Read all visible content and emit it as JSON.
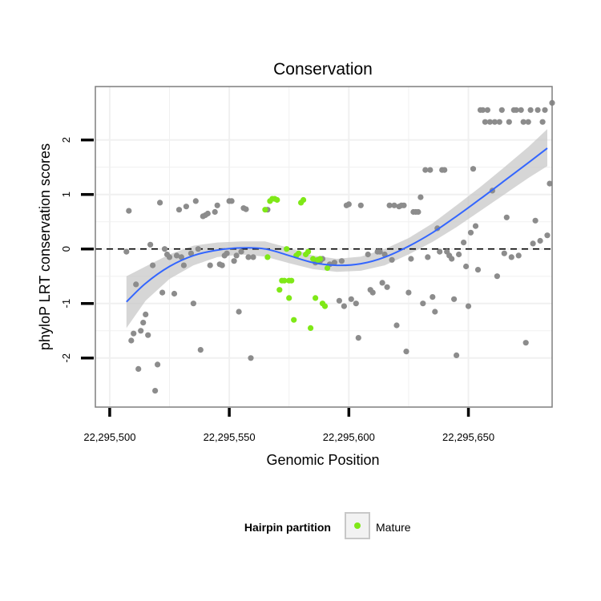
{
  "chart_data": {
    "type": "scatter",
    "title": "Conservation",
    "xlabel": "Genomic Position",
    "ylabel": "phyloP LRT conservation scores",
    "xlim": [
      22295494,
      22295685
    ],
    "ylim": [
      -2.9,
      2.98
    ],
    "x_ticks": [
      22295500,
      22295550,
      22295600,
      22295650
    ],
    "x_tick_labels": [
      "22,295,500",
      "22,295,550",
      "22,295,600",
      "22,295,650"
    ],
    "y_ticks": [
      -2,
      -1,
      0,
      1,
      2
    ],
    "y_tick_labels": [
      "-2",
      "-1",
      "0",
      "1",
      "2"
    ],
    "grid": true,
    "reference_line": {
      "y": 0,
      "style": "dashed"
    },
    "legend": {
      "title": "Hairpin partition",
      "position": "bottom",
      "entries": [
        "Mature"
      ]
    },
    "colors": {
      "other": "#8c8c8c",
      "mature": "#7fe817",
      "fit_line": "#3366ff",
      "ribbon": "#c8c8c8",
      "panel_border": "#7f7f7f",
      "grid": "#f0f0f0"
    },
    "series": [
      {
        "color": "#8c8c8c",
        "points": [
          [
            22295507,
            -0.05
          ],
          [
            22295508,
            0.7
          ],
          [
            22295509,
            -1.68
          ],
          [
            22295510,
            -1.55
          ],
          [
            22295511,
            -0.65
          ],
          [
            22295512,
            -2.2
          ],
          [
            22295513,
            -1.5
          ],
          [
            22295514,
            -1.35
          ],
          [
            22295515,
            -1.2
          ],
          [
            22295516,
            -1.58
          ],
          [
            22295517,
            0.08
          ],
          [
            22295518,
            -0.3
          ],
          [
            22295519,
            -2.6
          ],
          [
            22295520,
            -2.12
          ],
          [
            22295521,
            0.85
          ],
          [
            22295522,
            -0.8
          ],
          [
            22295523,
            0.0
          ],
          [
            22295524,
            -0.1
          ],
          [
            22295525,
            -0.15
          ],
          [
            22295527,
            -0.82
          ],
          [
            22295528,
            -0.12
          ],
          [
            22295529,
            0.72
          ],
          [
            22295530,
            -0.15
          ],
          [
            22295531,
            -0.3
          ],
          [
            22295532,
            0.78
          ],
          [
            22295534,
            -0.08
          ],
          [
            22295535,
            -1.0
          ],
          [
            22295536,
            0.88
          ],
          [
            22295537,
            0.0
          ],
          [
            22295538,
            -1.85
          ],
          [
            22295539,
            0.6
          ],
          [
            22295540,
            0.62
          ],
          [
            22295541,
            0.65
          ],
          [
            22295542,
            -0.3
          ],
          [
            22295544,
            0.68
          ],
          [
            22295545,
            0.8
          ],
          [
            22295546,
            -0.28
          ],
          [
            22295547,
            -0.3
          ],
          [
            22295548,
            -0.12
          ],
          [
            22295549,
            -0.08
          ],
          [
            22295550,
            0.88
          ],
          [
            22295551,
            0.88
          ],
          [
            22295552,
            -0.22
          ],
          [
            22295553,
            -0.12
          ],
          [
            22295554,
            -1.15
          ],
          [
            22295555,
            -0.05
          ],
          [
            22295556,
            0.75
          ],
          [
            22295557,
            0.73
          ],
          [
            22295558,
            -0.15
          ],
          [
            22295559,
            -2.0
          ],
          [
            22295560,
            -0.15
          ],
          [
            22295566,
            0.72
          ],
          [
            22295586,
            -0.25
          ],
          [
            22295587,
            -0.2
          ],
          [
            22295588,
            -0.22
          ],
          [
            22295589,
            -0.18
          ],
          [
            22295592,
            -0.28
          ],
          [
            22295594,
            -0.25
          ],
          [
            22295596,
            -0.95
          ],
          [
            22295597,
            -0.22
          ],
          [
            22295598,
            -1.05
          ],
          [
            22295599,
            0.8
          ],
          [
            22295600,
            0.82
          ],
          [
            22295601,
            -0.92
          ],
          [
            22295603,
            -1.0
          ],
          [
            22295604,
            -1.63
          ],
          [
            22295605,
            0.8
          ],
          [
            22295608,
            -0.1
          ],
          [
            22295609,
            -0.75
          ],
          [
            22295610,
            -0.8
          ],
          [
            22295612,
            -0.05
          ],
          [
            22295613,
            -0.05
          ],
          [
            22295614,
            -0.62
          ],
          [
            22295615,
            -0.1
          ],
          [
            22295616,
            -0.7
          ],
          [
            22295617,
            0.8
          ],
          [
            22295618,
            -0.2
          ],
          [
            22295619,
            0.8
          ],
          [
            22295620,
            -1.4
          ],
          [
            22295621,
            0.78
          ],
          [
            22295622,
            0.8
          ],
          [
            22295623,
            0.8
          ],
          [
            22295624,
            -1.88
          ],
          [
            22295625,
            -0.8
          ],
          [
            22295626,
            -0.18
          ],
          [
            22295627,
            0.68
          ],
          [
            22295628,
            0.68
          ],
          [
            22295629,
            0.68
          ],
          [
            22295630,
            0.95
          ],
          [
            22295631,
            -1.0
          ],
          [
            22295632,
            1.45
          ],
          [
            22295633,
            -0.15
          ],
          [
            22295634,
            1.45
          ],
          [
            22295635,
            -0.88
          ],
          [
            22295636,
            -1.15
          ],
          [
            22295637,
            0.38
          ],
          [
            22295638,
            -0.05
          ],
          [
            22295639,
            1.45
          ],
          [
            22295640,
            1.45
          ],
          [
            22295641,
            -0.05
          ],
          [
            22295642,
            -0.12
          ],
          [
            22295643,
            -0.18
          ],
          [
            22295644,
            -0.92
          ],
          [
            22295645,
            -1.95
          ],
          [
            22295646,
            -0.1
          ],
          [
            22295648,
            0.12
          ],
          [
            22295649,
            -0.32
          ],
          [
            22295650,
            -1.05
          ],
          [
            22295651,
            0.3
          ],
          [
            22295652,
            1.47
          ],
          [
            22295653,
            0.42
          ],
          [
            22295654,
            -0.38
          ],
          [
            22295655,
            2.55
          ],
          [
            22295656,
            2.55
          ],
          [
            22295657,
            2.33
          ],
          [
            22295658,
            2.55
          ],
          [
            22295659,
            2.33
          ],
          [
            22295660,
            1.07
          ],
          [
            22295661,
            2.33
          ],
          [
            22295662,
            -0.5
          ],
          [
            22295663,
            2.33
          ],
          [
            22295664,
            2.55
          ],
          [
            22295665,
            -0.08
          ],
          [
            22295666,
            0.58
          ],
          [
            22295667,
            2.33
          ],
          [
            22295668,
            -0.15
          ],
          [
            22295669,
            2.55
          ],
          [
            22295670,
            2.55
          ],
          [
            22295671,
            -0.12
          ],
          [
            22295672,
            2.55
          ],
          [
            22295673,
            2.33
          ],
          [
            22295674,
            -1.72
          ],
          [
            22295675,
            2.33
          ],
          [
            22295676,
            2.55
          ],
          [
            22295677,
            0.1
          ],
          [
            22295678,
            0.52
          ],
          [
            22295679,
            2.55
          ],
          [
            22295680,
            0.15
          ],
          [
            22295681,
            2.33
          ],
          [
            22295682,
            2.55
          ],
          [
            22295683,
            0.25
          ],
          [
            22295684,
            1.2
          ],
          [
            22295685,
            2.68
          ]
        ]
      },
      {
        "name": "Mature",
        "color": "#7fe817",
        "points": [
          [
            22295565,
            0.72
          ],
          [
            22295566,
            -0.15
          ],
          [
            22295567,
            0.88
          ],
          [
            22295568,
            0.92
          ],
          [
            22295569,
            0.92
          ],
          [
            22295570,
            0.9
          ],
          [
            22295571,
            -0.75
          ],
          [
            22295572,
            -0.58
          ],
          [
            22295573,
            -0.58
          ],
          [
            22295574,
            0.0
          ],
          [
            22295575,
            -0.58
          ],
          [
            22295576,
            -0.58
          ],
          [
            22295577,
            -1.3
          ],
          [
            22295578,
            -0.12
          ],
          [
            22295579,
            -0.08
          ],
          [
            22295580,
            0.85
          ],
          [
            22295581,
            0.9
          ],
          [
            22295582,
            -0.1
          ],
          [
            22295583,
            -0.05
          ],
          [
            22295584,
            -1.45
          ],
          [
            22295585,
            -0.18
          ],
          [
            22295586,
            -0.9
          ],
          [
            22295587,
            -0.2
          ],
          [
            22295588,
            -0.18
          ],
          [
            22295589,
            -1.0
          ],
          [
            22295590,
            -1.05
          ],
          [
            22295591,
            -0.35
          ],
          [
            22295575,
            -0.9
          ]
        ]
      }
    ],
    "smooth_fit": {
      "color": "#3366ff",
      "x": [
        22295507,
        22295515,
        22295525,
        22295535,
        22295545,
        22295555,
        22295565,
        22295575,
        22295585,
        22295595,
        22295605,
        22295615,
        22295625,
        22295635,
        22295645,
        22295655,
        22295665,
        22295675,
        22295683
      ],
      "y": [
        -0.97,
        -0.63,
        -0.32,
        -0.12,
        -0.02,
        0.02,
        0.0,
        -0.12,
        -0.25,
        -0.3,
        -0.27,
        -0.15,
        0.05,
        0.3,
        0.6,
        0.92,
        1.25,
        1.58,
        1.85
      ],
      "lower": [
        -1.45,
        -0.95,
        -0.55,
        -0.3,
        -0.15,
        -0.1,
        -0.14,
        -0.26,
        -0.37,
        -0.42,
        -0.4,
        -0.3,
        -0.1,
        0.13,
        0.4,
        0.7,
        1.0,
        1.3,
        1.52
      ],
      "upper": [
        -0.5,
        -0.32,
        -0.1,
        0.06,
        0.12,
        0.14,
        0.14,
        0.02,
        -0.12,
        -0.18,
        -0.14,
        0.0,
        0.2,
        0.47,
        0.8,
        1.14,
        1.5,
        1.87,
        2.2
      ]
    }
  }
}
